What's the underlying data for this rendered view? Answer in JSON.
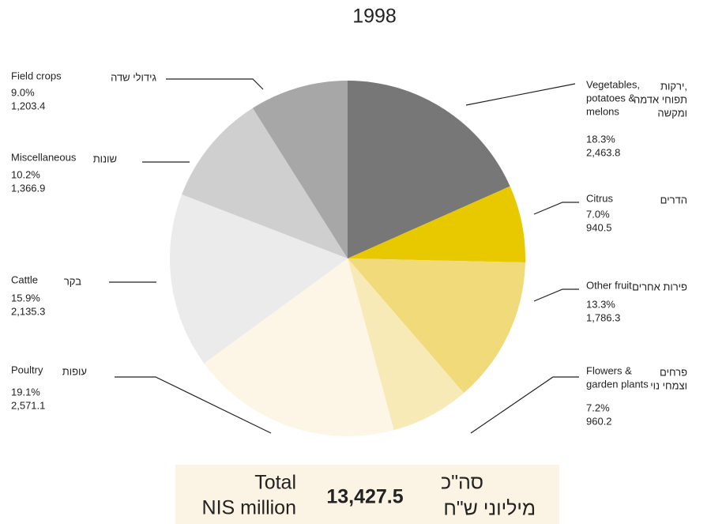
{
  "chart_data": {
    "type": "pie",
    "title": "1998",
    "categories": [
      [
        "Vegetables,",
        "potatoes &",
        "melons"
      ],
      [
        "Citrus"
      ],
      [
        "Other fruit"
      ],
      [
        "Flowers &",
        "garden plants"
      ],
      [
        "Poultry"
      ],
      [
        "Cattle"
      ],
      [
        "Miscellaneous"
      ],
      [
        "Field crops"
      ]
    ],
    "categories_he": [
      [
        "ירקות,",
        "תפוחי אדמה",
        "ומקשה"
      ],
      [
        "הדרים"
      ],
      [
        "פירות אחרים"
      ],
      [
        "פרחים",
        "וצמחי נוי"
      ],
      [
        "עופות"
      ],
      [
        "בקר"
      ],
      [
        "שונות"
      ],
      [
        "גידולי שדה"
      ]
    ],
    "values": [
      2463.8,
      940.5,
      1786.3,
      960.2,
      2571.1,
      2135.3,
      1366.9,
      1203.4
    ],
    "value_labels": [
      "2,463.8",
      "940.5",
      "1,786.3",
      "960.2",
      "2,571.1",
      "2,135.3",
      "1,366.9",
      "1,203.4"
    ],
    "percents": [
      {
        "value": 18.3,
        "label": "18.3%"
      },
      {
        "value": 7.0,
        "label": "7.0%"
      },
      {
        "value": 13.3,
        "label": "13.3%"
      },
      {
        "value": 7.2,
        "label": "7.2%"
      },
      {
        "value": 19.1,
        "label": "19.1%"
      },
      {
        "value": 15.9,
        "label": "15.9%"
      },
      {
        "value": 10.2,
        "label": "10.2%"
      },
      {
        "value": 9.0,
        "label": "9.0%"
      }
    ],
    "colors": [
      "#777777",
      "#e8c900",
      "#f1da7a",
      "#f8eab6",
      "#fdf6e7",
      "#ebebeb",
      "#cfcfcf",
      "#a7a7a7"
    ],
    "total": {
      "label_en": [
        "Total",
        "NIS million"
      ],
      "value": {
        "value": 13427.5,
        "label": "13,427.5"
      },
      "label_he": [
        "סה\"כ",
        "מיליוני ש\"ח"
      ]
    }
  }
}
